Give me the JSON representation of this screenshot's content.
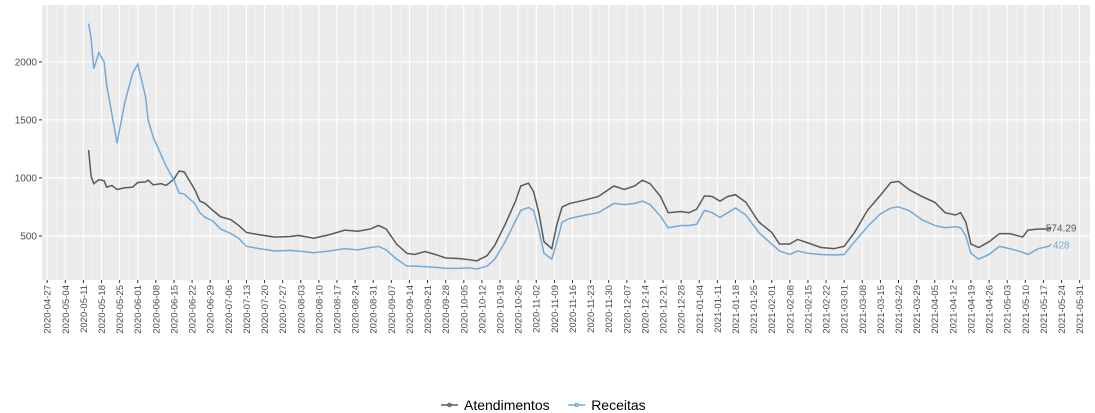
{
  "chart_data": {
    "type": "line",
    "x": [
      "2020-05-13",
      "2020-05-14",
      "2020-05-15",
      "2020-05-17",
      "2020-05-19",
      "2020-05-20",
      "2020-05-22",
      "2020-05-24",
      "2020-05-27",
      "2020-05-30",
      "2020-06-01",
      "2020-06-04",
      "2020-06-05",
      "2020-06-07",
      "2020-06-10",
      "2020-06-12",
      "2020-06-15",
      "2020-06-17",
      "2020-06-19",
      "2020-06-23",
      "2020-06-25",
      "2020-06-27",
      "2020-06-30",
      "2020-07-03",
      "2020-07-07",
      "2020-07-10",
      "2020-07-13",
      "2020-07-18",
      "2020-07-24",
      "2020-07-30",
      "2020-08-02",
      "2020-08-08",
      "2020-08-14",
      "2020-08-20",
      "2020-08-25",
      "2020-08-30",
      "2020-09-02",
      "2020-09-05",
      "2020-09-09",
      "2020-09-13",
      "2020-09-16",
      "2020-09-20",
      "2020-09-24",
      "2020-09-28",
      "2020-10-03",
      "2020-10-07",
      "2020-10-10",
      "2020-10-14",
      "2020-10-17",
      "2020-10-21",
      "2020-10-25",
      "2020-10-27",
      "2020-10-30",
      "2020-11-01",
      "2020-11-03",
      "2020-11-05",
      "2020-11-08",
      "2020-11-10",
      "2020-11-12",
      "2020-11-15",
      "2020-11-21",
      "2020-11-26",
      "2020-12-02",
      "2020-12-06",
      "2020-12-10",
      "2020-12-13",
      "2020-12-16",
      "2020-12-20",
      "2020-12-23",
      "2020-12-28",
      "2020-12-31",
      "2021-01-03",
      "2021-01-06",
      "2021-01-09",
      "2021-01-12",
      "2021-01-15",
      "2021-01-18",
      "2021-01-22",
      "2021-01-27",
      "2021-02-01",
      "2021-02-04",
      "2021-02-08",
      "2021-02-11",
      "2021-02-15",
      "2021-02-20",
      "2021-02-25",
      "2021-03-01",
      "2021-03-05",
      "2021-03-10",
      "2021-03-15",
      "2021-03-19",
      "2021-03-22",
      "2021-03-26",
      "2021-03-31",
      "2021-04-05",
      "2021-04-09",
      "2021-04-13",
      "2021-04-15",
      "2021-04-17",
      "2021-04-19",
      "2021-04-22",
      "2021-04-26",
      "2021-04-30",
      "2021-05-04",
      "2021-05-09",
      "2021-05-11",
      "2021-05-15",
      "2021-05-19",
      "2021-05-20"
    ],
    "series": [
      {
        "name": "Atendimentos",
        "color": "#595959",
        "values": [
          1240,
          1010,
          950,
          985,
          975,
          920,
          935,
          900,
          915,
          920,
          960,
          965,
          980,
          940,
          950,
          935,
          990,
          1060,
          1050,
          900,
          800,
          780,
          720,
          665,
          640,
          590,
          530,
          510,
          490,
          495,
          505,
          480,
          510,
          550,
          540,
          560,
          590,
          560,
          430,
          350,
          340,
          365,
          340,
          310,
          305,
          295,
          285,
          330,
          420,
          600,
          800,
          930,
          955,
          880,
          700,
          450,
          390,
          600,
          750,
          780,
          810,
          840,
          930,
          900,
          930,
          980,
          950,
          840,
          700,
          710,
          700,
          730,
          845,
          840,
          800,
          840,
          855,
          790,
          620,
          530,
          430,
          430,
          470,
          440,
          400,
          390,
          410,
          530,
          720,
          850,
          960,
          970,
          900,
          840,
          790,
          700,
          680,
          700,
          620,
          430,
          400,
          450,
          520,
          520,
          490,
          550,
          560,
          560,
          574.29
        ]
      },
      {
        "name": "Receitas",
        "color": "#74a9d8",
        "values": [
          2330,
          2200,
          1940,
          2080,
          2000,
          1800,
          1550,
          1300,
          1650,
          1900,
          1980,
          1700,
          1500,
          1350,
          1200,
          1100,
          980,
          870,
          860,
          780,
          700,
          660,
          630,
          560,
          520,
          480,
          410,
          390,
          370,
          375,
          370,
          355,
          370,
          390,
          380,
          400,
          410,
          380,
          300,
          240,
          240,
          235,
          230,
          220,
          220,
          225,
          215,
          240,
          300,
          450,
          630,
          720,
          745,
          720,
          550,
          350,
          300,
          450,
          620,
          650,
          680,
          700,
          780,
          770,
          780,
          800,
          770,
          670,
          570,
          590,
          590,
          600,
          720,
          700,
          660,
          700,
          740,
          680,
          530,
          430,
          370,
          340,
          370,
          350,
          340,
          335,
          340,
          450,
          580,
          690,
          740,
          750,
          720,
          640,
          590,
          570,
          580,
          570,
          500,
          350,
          300,
          340,
          410,
          390,
          360,
          340,
          390,
          410,
          428
        ]
      }
    ],
    "xlim": [
      "2020-04-25",
      "2021-06-04"
    ],
    "xticks": [
      "2020-04-27",
      "2020-05-04",
      "2020-05-11",
      "2020-05-18",
      "2020-05-25",
      "2020-06-01",
      "2020-06-08",
      "2020-06-15",
      "2020-06-22",
      "2020-06-29",
      "2020-07-06",
      "2020-07-13",
      "2020-07-20",
      "2020-07-27",
      "2020-08-03",
      "2020-08-10",
      "2020-08-17",
      "2020-08-24",
      "2020-08-31",
      "2020-09-07",
      "2020-09-14",
      "2020-09-21",
      "2020-09-28",
      "2020-10-05",
      "2020-10-12",
      "2020-10-19",
      "2020-10-26",
      "2020-11-02",
      "2020-11-09",
      "2020-11-16",
      "2020-11-23",
      "2020-11-30",
      "2020-12-07",
      "2020-12-14",
      "2020-12-21",
      "2020-12-28",
      "2021-01-04",
      "2021-01-11",
      "2021-01-18",
      "2021-01-25",
      "2021-02-01",
      "2021-02-08",
      "2021-02-15",
      "2021-02-22",
      "2021-03-01",
      "2021-03-08",
      "2021-03-15",
      "2021-03-22",
      "2021-03-29",
      "2021-04-05",
      "2021-04-12",
      "2021-04-19",
      "2021-04-26",
      "2021-05-03",
      "2021-05-10",
      "2021-05-17",
      "2021-05-24",
      "2021-05-31"
    ],
    "ylim": [
      120,
      2490
    ],
    "yticks": [
      500,
      1000,
      1500,
      2000
    ],
    "grid": true,
    "legend": "bottom"
  }
}
